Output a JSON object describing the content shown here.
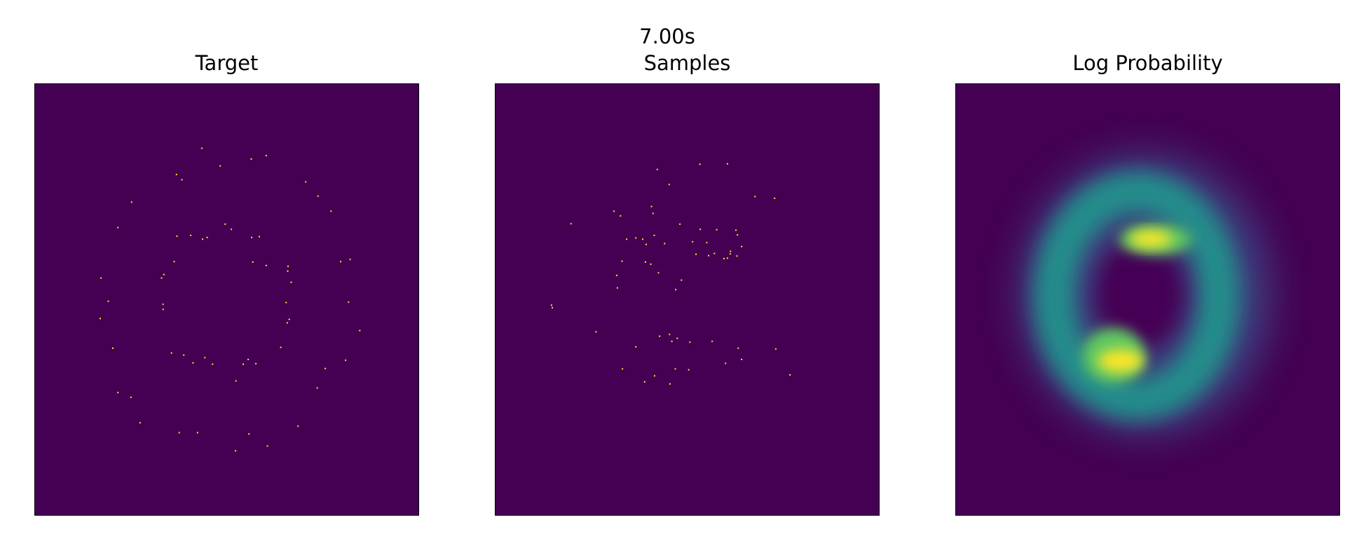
{
  "suptitle": "7.00s",
  "colors": {
    "background": "#440154",
    "point": "#fde725"
  },
  "panels": [
    {
      "title": "Target"
    },
    {
      "title": "Samples"
    },
    {
      "title": "Log Probability"
    }
  ],
  "chart_data": [
    {
      "type": "scatter",
      "title": "Target",
      "xlim": [
        0,
        100
      ],
      "ylim": [
        0,
        100
      ],
      "x": [
        43.5,
        48.3,
        56.4,
        60.3,
        36.9,
        38.3,
        70.6,
        73.8,
        25.2,
        77.2,
        21.6,
        37.0,
        40.6,
        43.7,
        44.9,
        49.6,
        51.2,
        56.5,
        58.5,
        82.2,
        79.7,
        36.3,
        33.6,
        56.8,
        60.3,
        66.0,
        65.9,
        17.2,
        33.0,
        66.8,
        19.1,
        81.8,
        33.4,
        65.5,
        66.3,
        17.0,
        33.4,
        65.8,
        84.7,
        20.3,
        64.1,
        35.6,
        38.8,
        44.3,
        41.2,
        46.3,
        55.6,
        54.3,
        57.6,
        81.0,
        75.7,
        52.4,
        73.6,
        21.6,
        25.0,
        27.4,
        37.6,
        42.4,
        68.6,
        60.6,
        52.3,
        55.8
      ],
      "y": [
        85.1,
        81.0,
        82.6,
        83.4,
        79.0,
        77.8,
        77.3,
        74.0,
        72.6,
        70.5,
        66.7,
        64.7,
        64.9,
        64.0,
        64.4,
        67.5,
        66.3,
        64.4,
        64.6,
        59.3,
        58.8,
        58.8,
        55.8,
        58.7,
        57.9,
        57.7,
        56.6,
        55.0,
        55.0,
        54.0,
        49.6,
        49.4,
        48.9,
        49.3,
        45.4,
        45.6,
        47.7,
        44.6,
        42.8,
        38.7,
        38.9,
        37.6,
        37.1,
        36.5,
        35.3,
        35.0,
        36.1,
        35.0,
        35.1,
        35.9,
        34.0,
        31.1,
        29.5,
        28.4,
        27.3,
        21.4,
        19.1,
        19.1,
        20.6,
        16.0,
        14.9,
        18.8
      ]
    },
    {
      "type": "scatter",
      "title": "Samples",
      "xlim": [
        0,
        100
      ],
      "ylim": [
        0,
        100
      ],
      "x": [
        42.2,
        53.3,
        60.5,
        45.3,
        67.7,
        40.7,
        72.8,
        41.1,
        19.7,
        30.9,
        62.7,
        32.6,
        36.6,
        41.4,
        48.1,
        53.4,
        57.7,
        63.1,
        34.2,
        38.4,
        39.3,
        44.1,
        61.2,
        64.2,
        51.4,
        55.1,
        61.3,
        59.6,
        39.1,
        33.0,
        31.6,
        14.8,
        48.5,
        40.5,
        42.5,
        52.3,
        55.6,
        57.1,
        60.5,
        63.0,
        31.8,
        47.0,
        63.3,
        73.1,
        60.0,
        14.6,
        42.8,
        26.2,
        36.6,
        47.4,
        45.4,
        46.0,
        56.5,
        50.7,
        76.8,
        33.1,
        38.9,
        50.4,
        45.5,
        64.2,
        41.5,
        46.9
      ],
      "y": [
        80.2,
        81.4,
        81.5,
        76.7,
        73.9,
        71.6,
        73.5,
        70.0,
        67.6,
        70.5,
        66.1,
        69.4,
        64.3,
        64.9,
        67.5,
        66.3,
        66.2,
        65.0,
        64.0,
        64.0,
        62.8,
        63.0,
        60.6,
        62.3,
        63.4,
        63.2,
        61.2,
        59.5,
        58.7,
        58.9,
        55.6,
        48.1,
        54.5,
        58.2,
        56.2,
        60.5,
        60.2,
        60.7,
        59.6,
        60.1,
        52.7,
        52.3,
        38.7,
        38.5,
        35.2,
        48.7,
        41.5,
        42.5,
        39.0,
        41.0,
        41.9,
        40.3,
        40.3,
        40.1,
        32.5,
        33.9,
        30.9,
        33.7,
        30.4,
        36.1,
        32.3,
        33.9
      ],
      "note": ""
    },
    {
      "type": "heatmap",
      "title": "Log Probability",
      "xlim": [
        0,
        100
      ],
      "ylim": [
        0,
        100
      ],
      "colormap": "viridis"
    }
  ]
}
